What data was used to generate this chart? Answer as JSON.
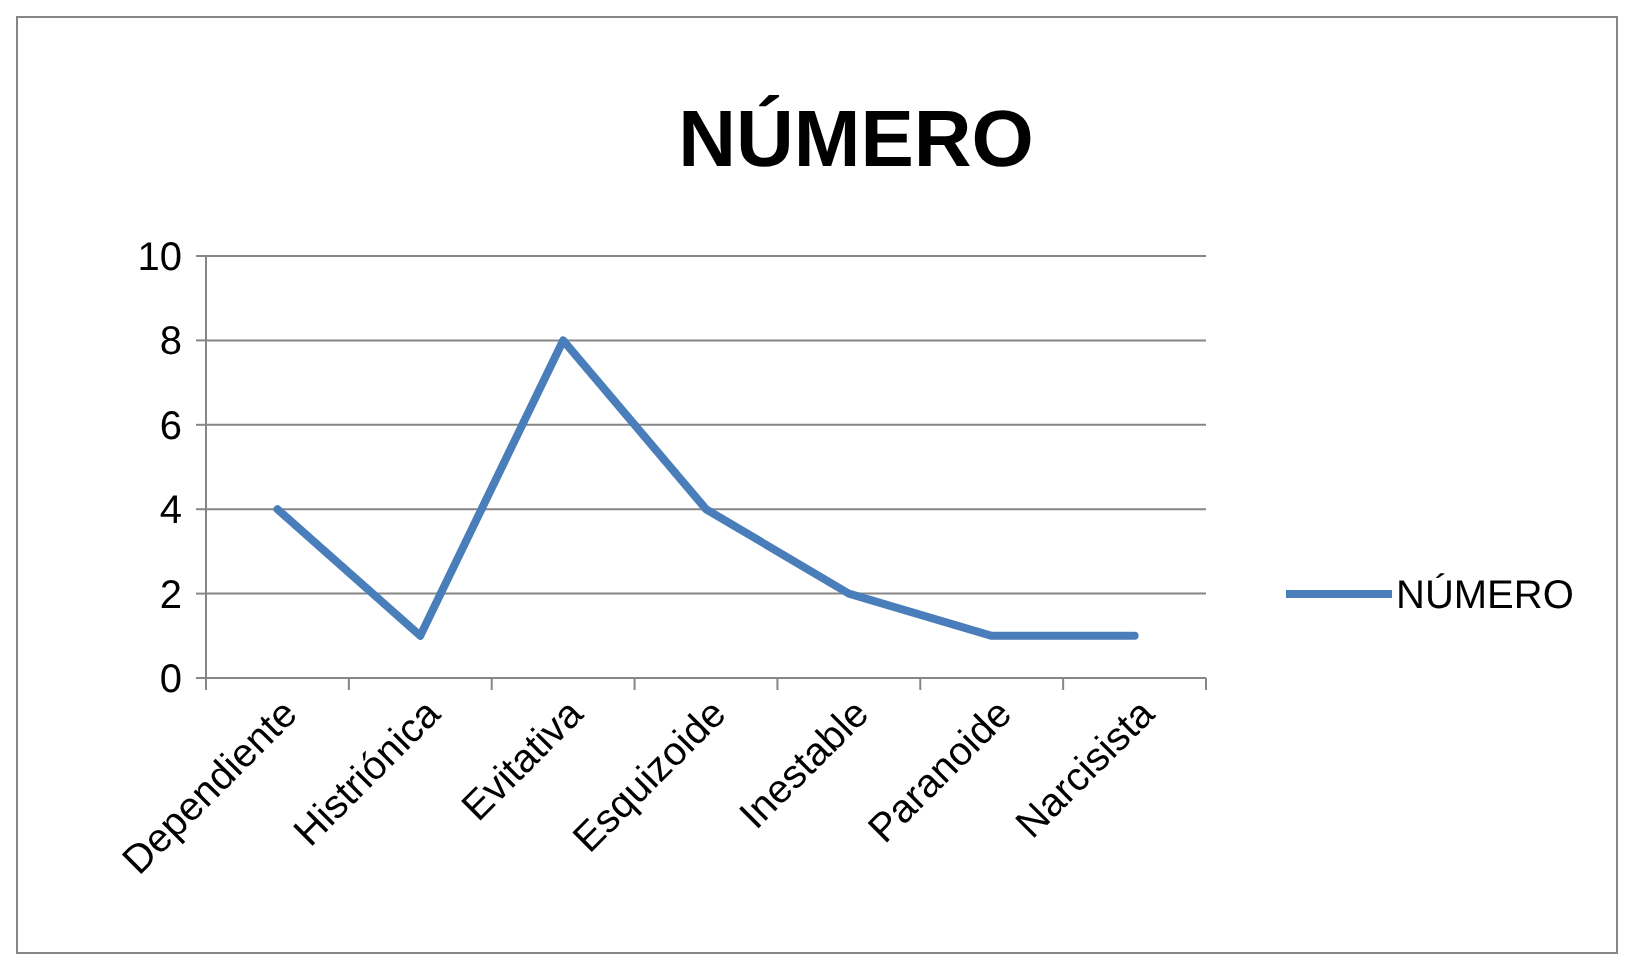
{
  "chart_data": {
    "type": "line",
    "title": "NÚMERO",
    "categories": [
      "Dependiente",
      "Histriónica",
      "Evitativa",
      "Esquizoide",
      "Inestable",
      "Paranoide",
      "Narcisista"
    ],
    "series": [
      {
        "name": "NÚMERO",
        "color": "#4a7ebb",
        "values": [
          4,
          1,
          8,
          4,
          2,
          1,
          1
        ]
      }
    ],
    "ylim": [
      0,
      10
    ],
    "yticks": [
      0,
      2,
      4,
      6,
      8,
      10
    ],
    "grid": "y",
    "legend": "right",
    "marker": "none",
    "line_style": "solid"
  }
}
